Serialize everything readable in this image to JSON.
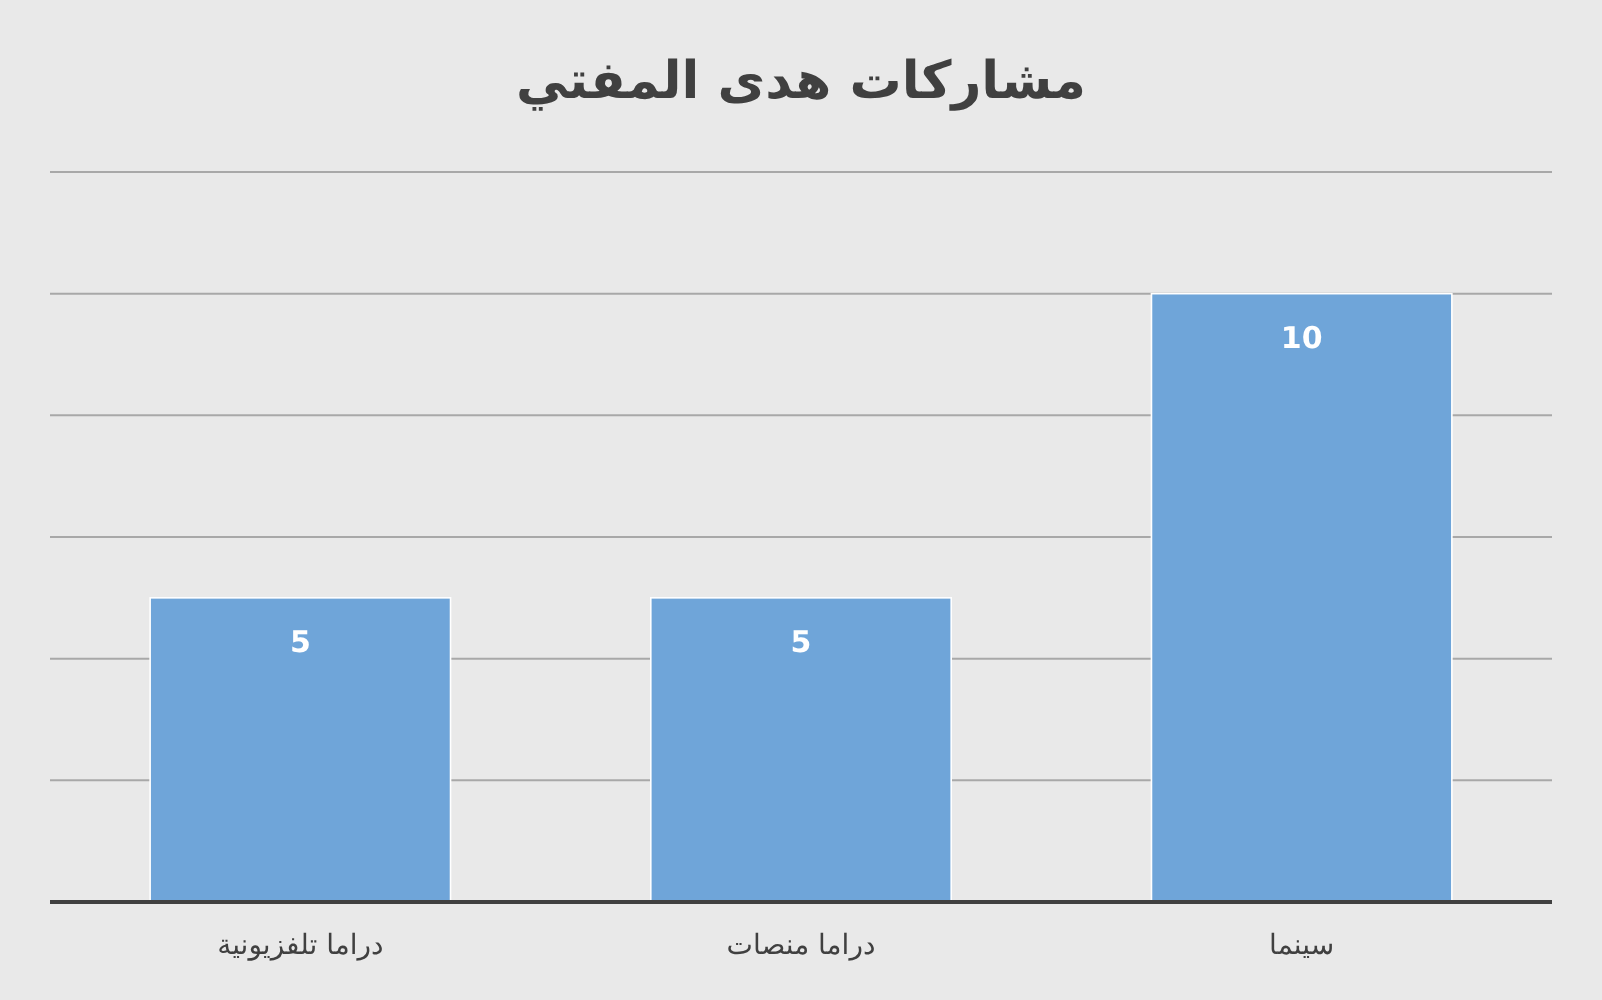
{
  "chart_data": {
    "type": "bar",
    "title": "مشاركات هدى المفتي",
    "categories": [
      "دراما تلفزيونية",
      "دراما منصات",
      "سينما"
    ],
    "values": [
      5,
      5,
      10
    ],
    "color": "#6fa5d9",
    "ylim": [
      0,
      12
    ],
    "yticks": [
      {
        "value": 0,
        "label": null
      },
      {
        "value": 2,
        "label": null
      },
      {
        "value": 4,
        "label": null
      },
      {
        "value": 6,
        "label": null
      },
      {
        "value": 8,
        "label": null
      },
      {
        "value": 10,
        "label": null
      },
      {
        "value": 12,
        "label": null
      }
    ],
    "grid": "y",
    "tick_labels": "x",
    "data_labels": true,
    "legend": false
  }
}
